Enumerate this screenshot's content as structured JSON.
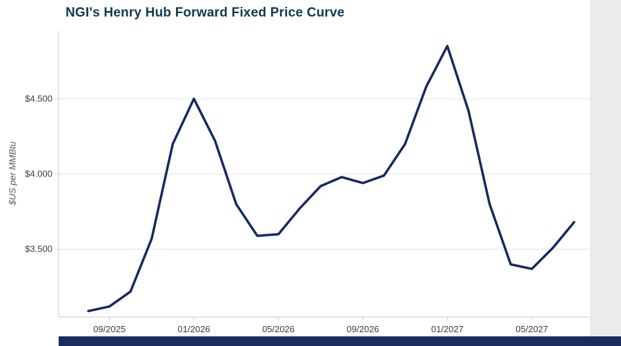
{
  "page": {
    "title": "NGI's Henry Hub Forward Fixed Price Curve"
  },
  "chart_data": {
    "type": "line",
    "title": "NGI's Henry Hub Forward Fixed Price Curve",
    "xlabel": "",
    "ylabel": "$US per MMBtu",
    "x": [
      "08/2025",
      "09/2025",
      "10/2025",
      "11/2025",
      "12/2025",
      "01/2026",
      "02/2026",
      "03/2026",
      "04/2026",
      "05/2026",
      "06/2026",
      "07/2026",
      "08/2026",
      "09/2026",
      "10/2026",
      "11/2026",
      "12/2026",
      "01/2027",
      "02/2027",
      "03/2027",
      "04/2027",
      "05/2027",
      "06/2027",
      "07/2027"
    ],
    "values": [
      3.09,
      3.12,
      3.22,
      3.57,
      4.2,
      4.5,
      4.22,
      3.8,
      3.59,
      3.6,
      3.77,
      3.92,
      3.98,
      3.94,
      3.99,
      4.2,
      4.58,
      4.85,
      4.42,
      3.8,
      3.4,
      3.37,
      3.51,
      3.68
    ],
    "x_tick_labels": [
      "09/2025",
      "01/2026",
      "05/2026",
      "09/2026",
      "01/2027",
      "05/2027"
    ],
    "y_ticks": [
      3.5,
      4.0,
      4.5
    ],
    "y_tick_labels": [
      "$3.500",
      "$4.000",
      "$4.500"
    ],
    "ylim": [
      3.05,
      4.95
    ],
    "grid": true,
    "legend": "none"
  },
  "colors": {
    "title_text": "#0d3a52",
    "line": "#16295f",
    "footer_bar": "#1b2d5e",
    "grid_line": "#e4e4e4",
    "axis_line": "#c9c9c9",
    "tick_text": "#3a3a3a",
    "side_strip": "#ebebeb"
  }
}
